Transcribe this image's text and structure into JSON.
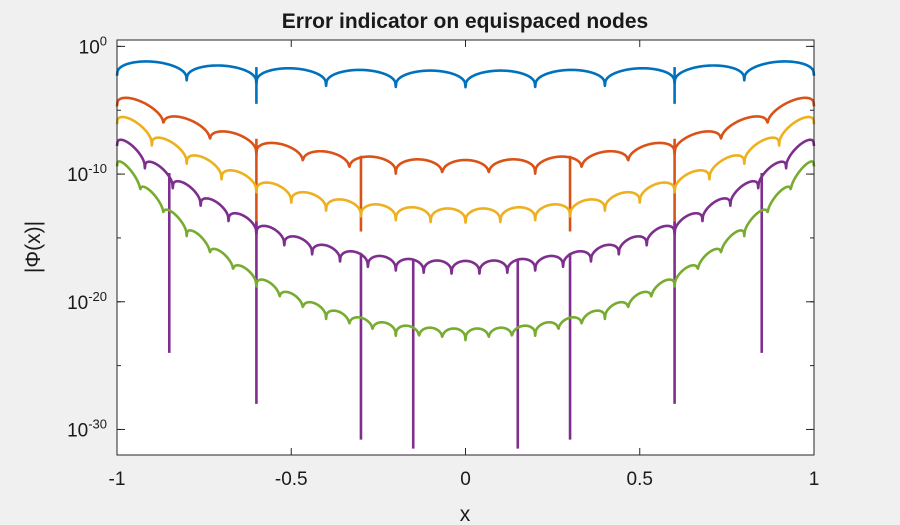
{
  "chart_data": {
    "type": "line",
    "title": "Error indicator on equispaced nodes",
    "xlabel": "x",
    "ylabel": "|Φ(x)|",
    "xlim": [
      -1,
      1
    ],
    "ylim": [
      -32,
      0.5
    ],
    "yscale": "log",
    "grid": false,
    "legend": "none",
    "xticks": [
      {
        "value": -1,
        "label": "-1"
      },
      {
        "value": -0.5,
        "label": "-0.5"
      },
      {
        "value": 0,
        "label": "0"
      },
      {
        "value": 0.5,
        "label": "0.5"
      },
      {
        "value": 1,
        "label": "1"
      }
    ],
    "yticks": [
      {
        "value": 0,
        "label": "0"
      },
      {
        "value": -10,
        "label": "-10"
      },
      {
        "value": -20,
        "label": "-20"
      },
      {
        "value": -30,
        "label": "-30"
      }
    ],
    "series": [
      {
        "color": "#0072BD",
        "nodes": 10,
        "center": -1.9,
        "edge": -1.0,
        "dip": 1.3,
        "spikes": [
          {
            "x": -0.6,
            "y": -4.5
          },
          {
            "x": 0.6,
            "y": -4.5
          }
        ]
      },
      {
        "color": "#D95319",
        "nodes": 15,
        "center": -8.9,
        "edge": -3.5,
        "dip": 1.2,
        "spikes": [
          {
            "x": -0.6,
            "y": -14.5
          },
          {
            "x": -0.3,
            "y": -14.5
          },
          {
            "x": 0.3,
            "y": -14.5
          },
          {
            "x": 0.6,
            "y": -14.5
          }
        ]
      },
      {
        "color": "#EDB120",
        "nodes": 20,
        "center": -12.7,
        "edge": -5.0,
        "dip": 1.1,
        "spikes": []
      },
      {
        "color": "#7E2F8E",
        "nodes": 25,
        "center": -16.8,
        "edge": -6.8,
        "dip": 1.0,
        "spikes": [
          {
            "x": -0.85,
            "y": -24.0
          },
          {
            "x": -0.6,
            "y": -28.0
          },
          {
            "x": -0.3,
            "y": -30.8
          },
          {
            "x": -0.15,
            "y": -31.5
          },
          {
            "x": 0.15,
            "y": -31.5
          },
          {
            "x": 0.3,
            "y": -30.8
          },
          {
            "x": 0.6,
            "y": -28.0
          },
          {
            "x": 0.85,
            "y": -24.0
          }
        ]
      },
      {
        "color": "#77AC30",
        "nodes": 30,
        "center": -22.1,
        "edge": -8.5,
        "dip": 0.9,
        "spikes": []
      }
    ]
  }
}
